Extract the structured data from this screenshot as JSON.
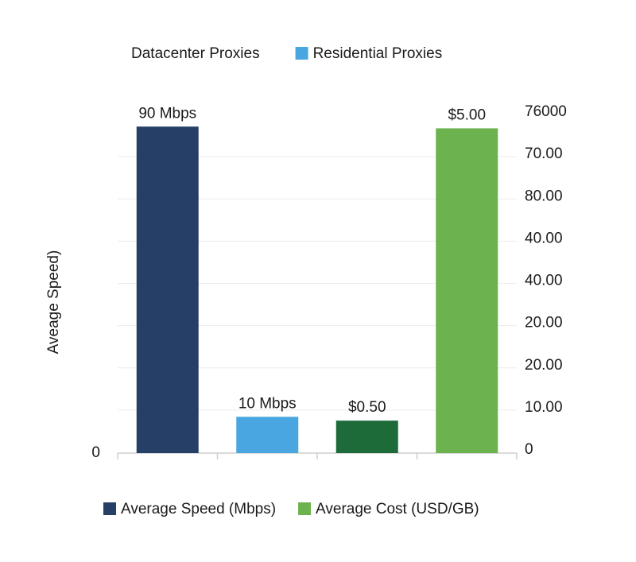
{
  "chart_data": {
    "type": "bar",
    "top_legend": [
      {
        "name": "Datacenter Proxies",
        "color": null
      },
      {
        "name": "Residential Proxies",
        "color": "#4aa6e0"
      }
    ],
    "ylabel": "Aveage Speed)",
    "ylim": [
      0,
      94
    ],
    "yticks": [
      0
    ],
    "y2ticks": [
      0,
      {
        "value": 10,
        "label": "10.00"
      },
      {
        "value": 20,
        "label": "20.00"
      },
      {
        "value": 20,
        "label": "20.00"
      },
      {
        "value": 40,
        "label": "40.00"
      },
      {
        "value": 40,
        "label": "40.00"
      },
      {
        "value": 80,
        "label": "80.00"
      },
      {
        "value": 70,
        "label": "70.00"
      },
      76000
    ],
    "y2lim": [
      0,
      5.25
    ],
    "categories": [
      null,
      null,
      null,
      null
    ],
    "series": [
      {
        "name": "Average Speed (Mbps)",
        "color": "#253f66",
        "point_colors": [
          "#253f66",
          "#4aa6e0",
          null,
          null
        ],
        "values": [
          90,
          10,
          null,
          null
        ],
        "value_labels": [
          "90 Mbps",
          "10 Mbps",
          null,
          null
        ]
      },
      {
        "name": "Average Cost (USD/GB)",
        "color": "#6cb24e",
        "axis": "y2",
        "point_colors": [
          null,
          null,
          "#1e6b3a",
          "#6cb24e"
        ],
        "values": [
          null,
          null,
          0.5,
          5
        ],
        "value_labels": [
          null,
          null,
          "$0.50",
          "$5.00"
        ]
      }
    ],
    "grid": true
  }
}
